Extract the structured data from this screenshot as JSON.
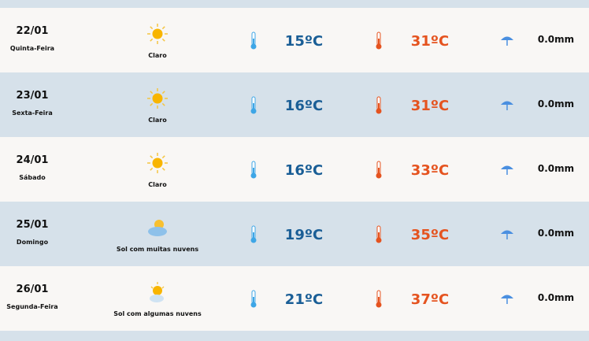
{
  "days": [
    {
      "date": "22/01",
      "weekday": "Quinta-Feira",
      "condition": "Claro",
      "icon": "sun-icon",
      "min": "15ºC",
      "max": "31ºC",
      "rain": "0.0mm"
    },
    {
      "date": "23/01",
      "weekday": "Sexta-Feira",
      "condition": "Claro",
      "icon": "sun-icon",
      "min": "16ºC",
      "max": "31ºC",
      "rain": "0.0mm"
    },
    {
      "date": "24/01",
      "weekday": "Sábado",
      "condition": "Claro",
      "icon": "sun-icon",
      "min": "16ºC",
      "max": "33ºC",
      "rain": "0.0mm"
    },
    {
      "date": "25/01",
      "weekday": "Domingo",
      "condition": "Sol com muitas nuvens",
      "icon": "sun-cloudy-icon",
      "min": "19ºC",
      "max": "35ºC",
      "rain": "0.0mm"
    },
    {
      "date": "26/01",
      "weekday": "Segunda-Feira",
      "condition": "Sol com algumas nuvens",
      "icon": "sun-partly-cloudy-icon",
      "min": "21ºC",
      "max": "37ºC",
      "rain": "0.0mm"
    }
  ],
  "colors": {
    "min": "#1a5e96",
    "max": "#e5531f",
    "row_light": "#f9f7f5",
    "row_alt": "#d6e1ea"
  }
}
